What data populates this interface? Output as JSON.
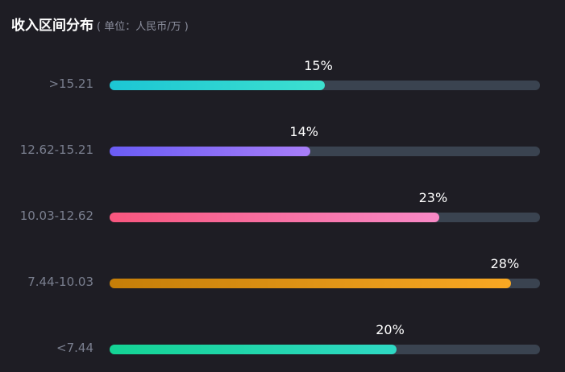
{
  "header": {
    "title": "收入区间分布",
    "unit": "( 单位：人民币/万 )"
  },
  "chart_data": {
    "type": "bar",
    "orientation": "horizontal",
    "title": "收入区间分布",
    "subtitle": "( 单位：人民币/万 )",
    "categories": [
      ">15.21",
      "12.62-15.21",
      "10.03-12.62",
      "7.44-10.03",
      "<7.44"
    ],
    "values": [
      15,
      14,
      23,
      28,
      20
    ],
    "value_labels": [
      "15%",
      "14%",
      "23%",
      "28%",
      "20%"
    ],
    "xlim": [
      0,
      30
    ],
    "grid": false,
    "legend": "none",
    "colors": [
      {
        "from": "#1cc6d4",
        "to": "#3de0cf"
      },
      {
        "from": "#6a5cf5",
        "to": "#a87ef8"
      },
      {
        "from": "#f8567e",
        "to": "#f889c6"
      },
      {
        "from": "#c57e08",
        "to": "#f9a823"
      },
      {
        "from": "#14d394",
        "to": "#2fd8c4"
      }
    ],
    "track_color": "#3a4350"
  }
}
